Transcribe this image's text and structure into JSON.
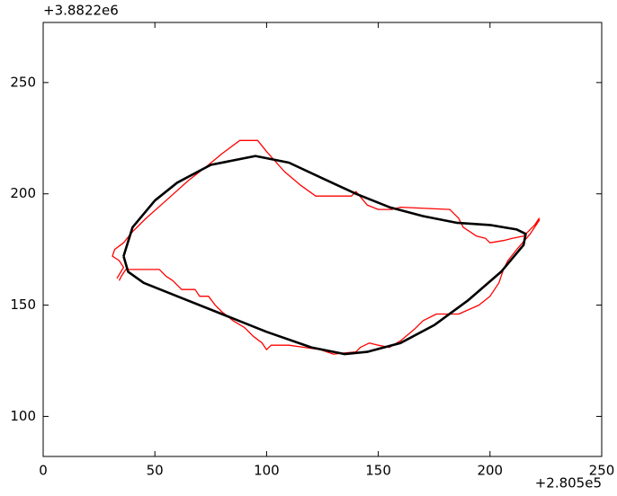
{
  "chart_data": {
    "type": "line",
    "x_offset_label": "+2.805e5",
    "y_offset_label": "+3.8822e6",
    "xlim": [
      0,
      250
    ],
    "ylim": [
      82,
      277
    ],
    "xticks": [
      0,
      50,
      100,
      150,
      200,
      250
    ],
    "yticks": [
      100,
      150,
      200,
      250
    ],
    "series": [
      {
        "color": "#ff0000",
        "x": [
          34,
          35,
          37,
          41,
          52,
          55,
          58,
          62,
          68,
          70,
          74,
          77,
          80,
          85,
          90,
          94,
          98,
          100,
          102,
          110,
          117,
          124,
          130,
          140,
          142,
          146,
          150,
          155,
          160,
          166,
          170,
          176,
          186,
          195,
          200,
          204,
          206,
          208,
          212,
          218,
          222,
          222,
          220,
          215,
          210,
          206,
          200,
          198,
          194,
          188,
          186,
          182,
          160,
          156,
          150,
          145,
          140,
          138,
          122,
          115,
          108,
          100,
          96,
          88,
          80,
          74,
          65,
          55,
          46,
          40,
          36,
          32,
          31,
          34,
          36,
          33
        ],
        "values": [
          161,
          163,
          166,
          166,
          166,
          163,
          161,
          157,
          157,
          154,
          154,
          150,
          147,
          143,
          140,
          136,
          133,
          130,
          132,
          132,
          131,
          130,
          128,
          129,
          131,
          133,
          132,
          131,
          134,
          139,
          143,
          146,
          146,
          150,
          154,
          160,
          166,
          170,
          175,
          182,
          188,
          189,
          186,
          181,
          180,
          179,
          178,
          180,
          181,
          185,
          189,
          193,
          194,
          193,
          193,
          195,
          201,
          199,
          199,
          204,
          210,
          219,
          224,
          224,
          218,
          213,
          206,
          197,
          189,
          183,
          178,
          175,
          172,
          170,
          167,
          162
        ]
      },
      {
        "color": "#000000",
        "x": [
          36,
          40,
          50,
          60,
          75,
          95,
          110,
          125,
          140,
          155,
          170,
          185,
          200,
          212,
          216,
          215,
          205,
          190,
          175,
          160,
          145,
          135,
          120,
          100,
          80,
          60,
          45,
          38,
          36
        ],
        "values": [
          172,
          185,
          197,
          205,
          213,
          217,
          214,
          207,
          200,
          194,
          190,
          187,
          186,
          184,
          182,
          177,
          165,
          152,
          141,
          133,
          129,
          128,
          131,
          138,
          146,
          154,
          160,
          165,
          172
        ]
      }
    ]
  }
}
